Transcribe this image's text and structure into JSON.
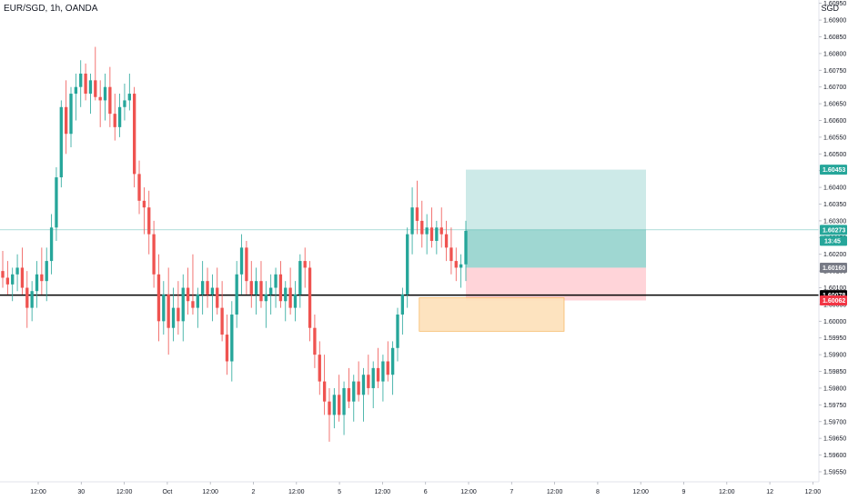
{
  "symbol_line": "EUR/SGD, 1h, OANDA",
  "currency": "SGD",
  "colors": {
    "up": "#26a69a",
    "down": "#ef5350",
    "profit_zone": "#b2dfdb",
    "loss_zone": "#ffcdd2",
    "demand_zone": "#fde0b8",
    "horizontal_line": "#000000",
    "current_price": "#26a69a",
    "entry_tag": "#787b86",
    "stop_tag": "#f23645",
    "target_tag": "#26a69a"
  },
  "chart_data": {
    "type": "candlestick",
    "y_axis": {
      "min": 1.5952,
      "max": 1.6096,
      "ticks": [
        "1.60950",
        "1.60900",
        "1.60850",
        "1.60800",
        "1.60750",
        "1.60700",
        "1.60650",
        "1.60600",
        "1.60550",
        "1.60500",
        "1.60450",
        "1.60400",
        "1.60350",
        "1.60300",
        "1.60250",
        "1.60200",
        "1.60150",
        "1.60100",
        "1.60050",
        "1.60000",
        "1.59950",
        "1.59900",
        "1.59850",
        "1.59800",
        "1.59750",
        "1.59700",
        "1.59650",
        "1.59600",
        "1.59550"
      ]
    },
    "x_axis": {
      "ticks": [
        "12:00",
        "30",
        "12:00",
        "Oct",
        "12:00",
        "2",
        "12:00",
        "5",
        "12:00",
        "6",
        "12:00",
        "7",
        "12:00",
        "8",
        "12:00",
        "9",
        "12:00",
        "12",
        "12:00"
      ]
    },
    "candles": [
      [
        1.6015,
        1.6021,
        1.601,
        1.6013
      ],
      [
        1.6013,
        1.6018,
        1.6008,
        1.6011
      ],
      [
        1.6011,
        1.6016,
        1.6006,
        1.6014
      ],
      [
        1.6014,
        1.602,
        1.6009,
        1.6016
      ],
      [
        1.6016,
        1.6022,
        1.6008,
        1.601
      ],
      [
        1.601,
        1.6015,
        1.5998,
        1.6004
      ],
      [
        1.6004,
        1.6012,
        1.6,
        1.6009
      ],
      [
        1.6009,
        1.6018,
        1.6004,
        1.6014
      ],
      [
        1.6014,
        1.6022,
        1.6008,
        1.6012
      ],
      [
        1.6012,
        1.6022,
        1.6006,
        1.6018
      ],
      [
        1.6018,
        1.6032,
        1.6014,
        1.6028
      ],
      [
        1.6028,
        1.6046,
        1.6024,
        1.6043
      ],
      [
        1.6043,
        1.6066,
        1.604,
        1.6064
      ],
      [
        1.6064,
        1.6072,
        1.605,
        1.6056
      ],
      [
        1.6056,
        1.607,
        1.6052,
        1.6068
      ],
      [
        1.6068,
        1.6074,
        1.606,
        1.607
      ],
      [
        1.607,
        1.6078,
        1.6064,
        1.6074
      ],
      [
        1.6074,
        1.6077,
        1.6066,
        1.6068
      ],
      [
        1.6068,
        1.6074,
        1.6062,
        1.6072
      ],
      [
        1.6072,
        1.6082,
        1.6066,
        1.6067
      ],
      [
        1.6067,
        1.6072,
        1.6058,
        1.6066
      ],
      [
        1.6066,
        1.6074,
        1.606,
        1.607
      ],
      [
        1.607,
        1.6076,
        1.6058,
        1.6062
      ],
      [
        1.6062,
        1.6068,
        1.6054,
        1.6058
      ],
      [
        1.6058,
        1.6068,
        1.6055,
        1.6064
      ],
      [
        1.6064,
        1.6071,
        1.606,
        1.6066
      ],
      [
        1.6066,
        1.6074,
        1.6063,
        1.6068
      ],
      [
        1.6068,
        1.607,
        1.604,
        1.6044
      ],
      [
        1.6044,
        1.6048,
        1.6032,
        1.6036
      ],
      [
        1.6036,
        1.604,
        1.6026,
        1.6034
      ],
      [
        1.6034,
        1.6039,
        1.602,
        1.6026
      ],
      [
        1.6026,
        1.603,
        1.601,
        1.6014
      ],
      [
        1.6014,
        1.602,
        1.5994,
        1.6
      ],
      [
        1.6,
        1.6012,
        1.5996,
        1.6008
      ],
      [
        1.6008,
        1.6016,
        1.599,
        1.5998
      ],
      [
        1.5998,
        1.601,
        1.5994,
        1.6004
      ],
      [
        1.6004,
        1.6012,
        1.5996,
        1.6
      ],
      [
        1.6,
        1.6014,
        1.5994,
        1.601
      ],
      [
        1.601,
        1.6016,
        1.6002,
        1.6006
      ],
      [
        1.6006,
        1.602,
        1.6002,
        1.6004
      ],
      [
        1.6004,
        1.601,
        1.5998,
        1.6008
      ],
      [
        1.6008,
        1.6018,
        1.6002,
        1.6012
      ],
      [
        1.6012,
        1.6016,
        1.6004,
        1.6008
      ],
      [
        1.6008,
        1.6014,
        1.6,
        1.601
      ],
      [
        1.601,
        1.6016,
        1.6002,
        1.6004
      ],
      [
        1.6004,
        1.6012,
        1.5994,
        1.5996
      ],
      [
        1.5996,
        1.6002,
        1.5984,
        1.5988
      ],
      [
        1.5988,
        1.6006,
        1.5982,
        1.6002
      ],
      [
        1.6002,
        1.6018,
        1.5998,
        1.6014
      ],
      [
        1.6014,
        1.6026,
        1.6008,
        1.6022
      ],
      [
        1.6022,
        1.6024,
        1.6008,
        1.6012
      ],
      [
        1.6012,
        1.6018,
        1.6004,
        1.6008
      ],
      [
        1.6008,
        1.6016,
        1.6002,
        1.6012
      ],
      [
        1.6012,
        1.6018,
        1.6004,
        1.6006
      ],
      [
        1.6006,
        1.6012,
        1.5998,
        1.6008
      ],
      [
        1.6008,
        1.6014,
        1.6002,
        1.601
      ],
      [
        1.601,
        1.6016,
        1.6004,
        1.6014
      ],
      [
        1.6014,
        1.6018,
        1.6004,
        1.6006
      ],
      [
        1.6006,
        1.6012,
        1.6,
        1.601
      ],
      [
        1.601,
        1.6016,
        1.6002,
        1.6004
      ],
      [
        1.6004,
        1.6012,
        1.6,
        1.6008
      ],
      [
        1.6008,
        1.602,
        1.6004,
        1.6018
      ],
      [
        1.6018,
        1.6022,
        1.601,
        1.6016
      ],
      [
        1.6016,
        1.6018,
        1.5994,
        1.5998
      ],
      [
        1.5998,
        1.6002,
        1.5986,
        1.599
      ],
      [
        1.599,
        1.5994,
        1.5978,
        1.5982
      ],
      [
        1.5982,
        1.599,
        1.5972,
        1.5976
      ],
      [
        1.5976,
        1.598,
        1.5964,
        1.5972
      ],
      [
        1.5972,
        1.598,
        1.5968,
        1.5978
      ],
      [
        1.5978,
        1.5984,
        1.597,
        1.5972
      ],
      [
        1.5972,
        1.5982,
        1.5966,
        1.598
      ],
      [
        1.598,
        1.5986,
        1.5974,
        1.5976
      ],
      [
        1.5976,
        1.5984,
        1.597,
        1.5982
      ],
      [
        1.5982,
        1.5988,
        1.5976,
        1.5978
      ],
      [
        1.5978,
        1.5986,
        1.597,
        1.5984
      ],
      [
        1.5984,
        1.599,
        1.5978,
        1.598
      ],
      [
        1.598,
        1.5988,
        1.5974,
        1.5986
      ],
      [
        1.5986,
        1.5992,
        1.598,
        1.5982
      ],
      [
        1.5982,
        1.599,
        1.5976,
        1.5988
      ],
      [
        1.5988,
        1.5994,
        1.5982,
        1.5984
      ],
      [
        1.5984,
        1.5994,
        1.5978,
        1.5992
      ],
      [
        1.5992,
        1.6004,
        1.5988,
        1.6002
      ],
      [
        1.6002,
        1.601,
        1.5996,
        1.6008
      ],
      [
        1.6008,
        1.6028,
        1.6004,
        1.6026
      ],
      [
        1.6026,
        1.604,
        1.602,
        1.6034
      ],
      [
        1.6034,
        1.6042,
        1.6026,
        1.603
      ],
      [
        1.603,
        1.6036,
        1.6022,
        1.6026
      ],
      [
        1.6026,
        1.6032,
        1.602,
        1.6028
      ],
      [
        1.6028,
        1.6034,
        1.6022,
        1.6024
      ],
      [
        1.6024,
        1.603,
        1.602,
        1.6028
      ],
      [
        1.6028,
        1.6034,
        1.6022,
        1.6026
      ],
      [
        1.6026,
        1.603,
        1.6018,
        1.6022
      ],
      [
        1.6022,
        1.6028,
        1.6014,
        1.6018
      ],
      [
        1.6018,
        1.6022,
        1.6012,
        1.6016
      ],
      [
        1.6016,
        1.602,
        1.601,
        1.6017
      ],
      [
        1.6017,
        1.603,
        1.6012,
        1.6027
      ]
    ],
    "annotations": {
      "horizontal_level": 1.60078,
      "profit_zone": {
        "top": 1.60453,
        "bottom": 1.6016
      },
      "loss_zone": {
        "top": 1.6016,
        "bottom": 1.60062
      },
      "demand_zone": {
        "top": 1.6007,
        "bottom": 1.5997
      },
      "current_price": 1.60273
    },
    "price_tags": {
      "target": "1.60453",
      "current": "1.60273",
      "countdown": "13:45",
      "entry": "1.60160",
      "level": "1.60078",
      "stop": "1.60062"
    }
  }
}
